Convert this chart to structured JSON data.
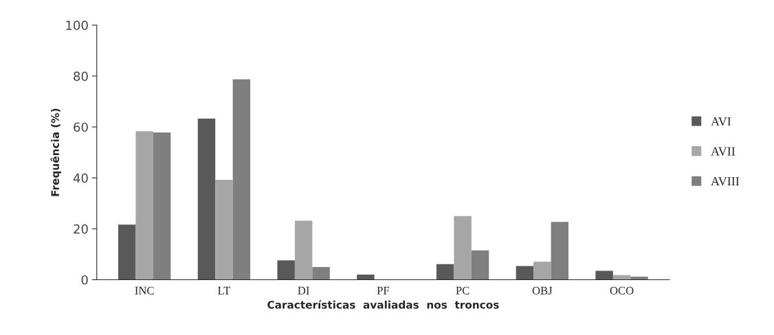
{
  "chart_data": {
    "type": "bar",
    "xlabel": "Características  avaliadas  nos  troncos",
    "ylabel": "Frequência (%)",
    "categories": [
      "INC",
      "LT",
      "DI",
      "PF",
      "PC",
      "OBJ",
      "OCO"
    ],
    "series": [
      {
        "name": "AVI",
        "color": "#595959",
        "values": [
          21.6,
          63.3,
          7.6,
          2.0,
          6.1,
          5.4,
          3.5
        ]
      },
      {
        "name": "AVII",
        "color": "#a6a6a6",
        "values": [
          58.3,
          39.2,
          23.2,
          0,
          25,
          7.1,
          1.8
        ]
      },
      {
        "name": "AVIII",
        "color": "#7f7f7f",
        "values": [
          57.8,
          78.7,
          5.0,
          0,
          11.5,
          22.7,
          1.2
        ]
      }
    ],
    "ylim": [
      0,
      100
    ],
    "yticks": [
      0,
      20,
      40,
      60,
      80,
      100
    ],
    "grid": false,
    "legend": "right"
  }
}
